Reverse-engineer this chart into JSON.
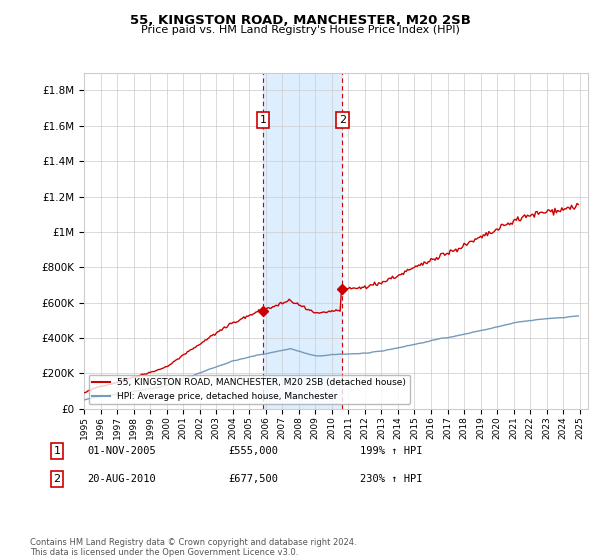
{
  "title1": "55, KINGSTON ROAD, MANCHESTER, M20 2SB",
  "title2": "Price paid vs. HM Land Registry's House Price Index (HPI)",
  "ylim": [
    0,
    1900000
  ],
  "yticks": [
    0,
    200000,
    400000,
    600000,
    800000,
    1000000,
    1200000,
    1400000,
    1600000,
    1800000
  ],
  "ytick_labels": [
    "£0",
    "£200K",
    "£400K",
    "£600K",
    "£800K",
    "£1M",
    "£1.2M",
    "£1.4M",
    "£1.6M",
    "£1.8M"
  ],
  "xlim_start": 1995.0,
  "xlim_end": 2025.5,
  "transaction1_x": 2005.833,
  "transaction1_y": 555000,
  "transaction2_x": 2010.625,
  "transaction2_y": 677500,
  "legend_line1": "55, KINGSTON ROAD, MANCHESTER, M20 2SB (detached house)",
  "legend_line2": "HPI: Average price, detached house, Manchester",
  "note1_date": "01-NOV-2005",
  "note1_price": "£555,000",
  "note1_hpi": "199% ↑ HPI",
  "note2_date": "20-AUG-2010",
  "note2_price": "£677,500",
  "note2_hpi": "230% ↑ HPI",
  "footer": "Contains HM Land Registry data © Crown copyright and database right 2024.\nThis data is licensed under the Open Government Licence v3.0.",
  "red_color": "#cc0000",
  "blue_color": "#7799bb",
  "shade_color": "#ddeeff",
  "marker_box_color": "#cc0000",
  "grid_color": "#cccccc",
  "bg_color": "#ffffff"
}
